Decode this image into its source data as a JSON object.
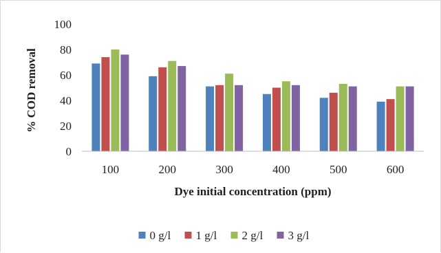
{
  "chart_data": {
    "type": "bar",
    "title": "",
    "xlabel": "Dye initial concentration (ppm)",
    "ylabel": "% COD removal",
    "categories": [
      "100",
      "200",
      "300",
      "400",
      "500",
      "600"
    ],
    "ylim": [
      0,
      100
    ],
    "yticks": [
      "0",
      "20",
      "40",
      "60",
      "80",
      "100"
    ],
    "grid": false,
    "legend_position": "bottom",
    "series": [
      {
        "name": "0 g/l",
        "color": "#4f81bd",
        "values": [
          69,
          59,
          51,
          45,
          42,
          39
        ]
      },
      {
        "name": "1 g/l",
        "color": "#c0504d",
        "values": [
          74,
          66,
          52,
          50,
          46,
          41
        ]
      },
      {
        "name": "2 g/l",
        "color": "#9bbb59",
        "values": [
          80,
          71,
          61,
          55,
          53,
          51
        ]
      },
      {
        "name": "3 g/l",
        "color": "#8064a2",
        "values": [
          76,
          67,
          52,
          52,
          51,
          51
        ]
      }
    ]
  }
}
